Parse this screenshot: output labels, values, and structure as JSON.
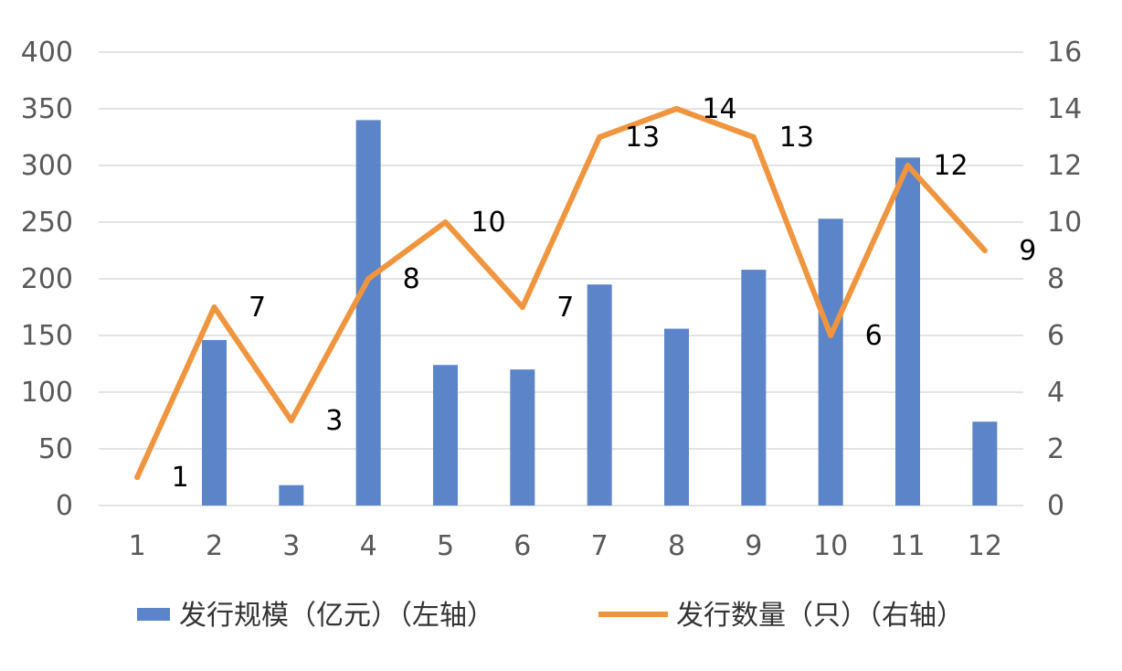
{
  "chart_data": {
    "type": "bar",
    "categories": [
      "1",
      "2",
      "3",
      "4",
      "5",
      "6",
      "7",
      "8",
      "9",
      "10",
      "11",
      "12"
    ],
    "series": [
      {
        "name": "发行规模（亿元）（左轴）",
        "type": "bar",
        "axis": "left",
        "color": "#5b84c9",
        "values": [
          0,
          146,
          18,
          340,
          124,
          120,
          195,
          156,
          208,
          253,
          307,
          74
        ]
      },
      {
        "name": "发行数量（只）（右轴）",
        "type": "line",
        "axis": "right",
        "color": "#f0953f",
        "values": [
          1,
          7,
          3,
          8,
          10,
          7,
          13,
          14,
          13,
          6,
          12,
          9
        ],
        "data_labels": [
          "1",
          "7",
          "3",
          "8",
          "10",
          "7",
          "13",
          "14",
          "13",
          "6",
          "12",
          "9"
        ]
      }
    ],
    "y_left": {
      "range": [
        0,
        400
      ],
      "ticks": [
        "0",
        "50",
        "100",
        "150",
        "200",
        "250",
        "300",
        "350",
        "400"
      ]
    },
    "y_right": {
      "range": [
        0,
        16
      ],
      "ticks": [
        "0",
        "2",
        "4",
        "6",
        "8",
        "10",
        "12",
        "14",
        "16"
      ]
    },
    "grid": true,
    "legend": "bottom"
  }
}
